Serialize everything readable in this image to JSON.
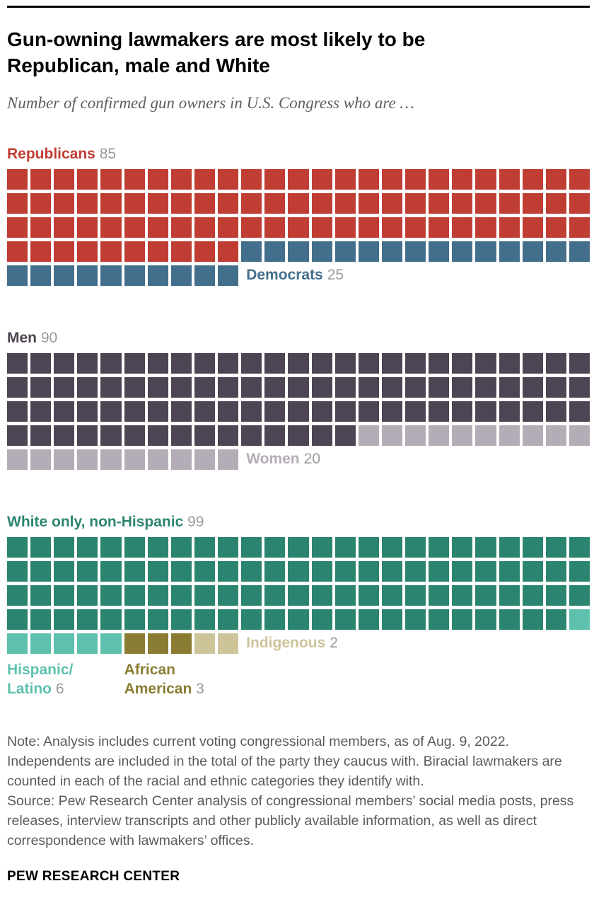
{
  "page": {
    "note_lines": [
      "Note: Analysis includes current voting congressional members, as of Aug. 9, 2022. Independents are included in the total of the party they caucus with. Biracial lawmakers are counted in each of the racial and ethnic categories they identify with.",
      "Source: Pew Research Center analysis of congressional members’ social media posts, press releases, interview transcripts and other publicly available information, as well as direct correspondence with lawmakers’ offices."
    ],
    "footer": "PEW RESEARCH CENTER"
  },
  "chart_data": {
    "type": "waffle",
    "title": "Gun-owning lawmakers are most likely to be Republican, male and White",
    "subtitle": "Number of confirmed gun owners in U.S. Congress who are …",
    "unit": "lawmakers",
    "columns": 25,
    "total_per_chart": 110,
    "value_color": "#9a9a9a",
    "charts": [
      {
        "name": "party",
        "segments": [
          {
            "label": "Republicans",
            "value": 85,
            "color": "#c03d33"
          },
          {
            "label": "Democrats",
            "value": 25,
            "color": "#436f8c"
          }
        ]
      },
      {
        "name": "gender",
        "segments": [
          {
            "label": "Men",
            "value": 90,
            "color": "#4d4553"
          },
          {
            "label": "Women",
            "value": 20,
            "color": "#b4adb8"
          }
        ]
      },
      {
        "name": "race-ethnicity",
        "segments": [
          {
            "label": "White only, non-Hispanic",
            "value": 99,
            "color": "#2b8470"
          },
          {
            "label": "Hispanic/Latino",
            "value": 6,
            "color": "#5ec1ae",
            "label_line1": "Hispanic/",
            "label_line2": "Latino"
          },
          {
            "label": "African American",
            "value": 3,
            "color": "#8a7d33",
            "label_line1": "African",
            "label_line2": "American"
          },
          {
            "label": "Indigenous",
            "value": 2,
            "color": "#cdc49a"
          }
        ]
      }
    ]
  }
}
